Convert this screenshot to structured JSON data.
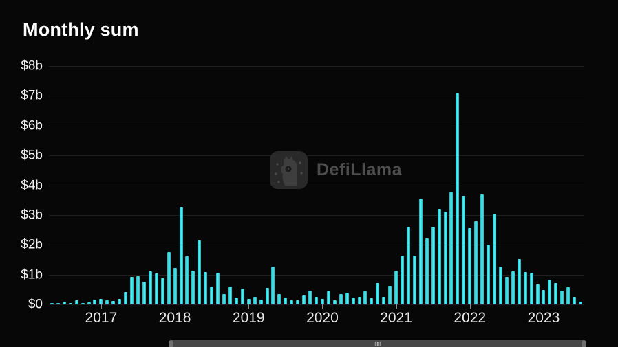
{
  "title": "Monthly sum",
  "watermark": {
    "text": "DefiLlama",
    "logo": "llama-in-rounded-square"
  },
  "colors": {
    "background": "#070707",
    "bar": "#35dbe0",
    "bar_gradient_edge": "#14b2c0",
    "bar_gradient_center": "#55eaee",
    "grid": "#1f1f1f",
    "axis_text": "#f2f2f2",
    "title_text": "#ffffff",
    "watermark_text": "#4d4d4d",
    "slider_track": "#474747",
    "slider_caps": "#6f6f6f",
    "slider_grip": "#a8a8a8"
  },
  "y_axis": {
    "tick_labels": [
      "$8b",
      "$7b",
      "$6b",
      "$5b",
      "$4b",
      "$3b",
      "$2b",
      "$1b",
      "$0"
    ],
    "max_billions": 8
  },
  "x_axis": {
    "tick_labels": [
      "2017",
      "2018",
      "2019",
      "2020",
      "2021",
      "2022",
      "2023"
    ]
  },
  "slider": {
    "grip_icon": "three-vertical-lines"
  },
  "chart_data": {
    "type": "bar",
    "title": "Monthly sum",
    "unit": "USD billions",
    "ylabel": "",
    "xlabel": "",
    "ylim": [
      0,
      8
    ],
    "y_ticks_billions": [
      0,
      1,
      2,
      3,
      4,
      5,
      6,
      7,
      8
    ],
    "x_tick_years": [
      2017,
      2018,
      2019,
      2020,
      2021,
      2022,
      2023
    ],
    "grid": "horizontal-only",
    "legend": "none",
    "x": [
      "2016-05",
      "2016-06",
      "2016-07",
      "2016-08",
      "2016-09",
      "2016-10",
      "2016-11",
      "2016-12",
      "2017-01",
      "2017-02",
      "2017-03",
      "2017-04",
      "2017-05",
      "2017-06",
      "2017-07",
      "2017-08",
      "2017-09",
      "2017-10",
      "2017-11",
      "2017-12",
      "2018-01",
      "2018-02",
      "2018-03",
      "2018-04",
      "2018-05",
      "2018-06",
      "2018-07",
      "2018-08",
      "2018-09",
      "2018-10",
      "2018-11",
      "2018-12",
      "2019-01",
      "2019-02",
      "2019-03",
      "2019-04",
      "2019-05",
      "2019-06",
      "2019-07",
      "2019-08",
      "2019-09",
      "2019-10",
      "2019-11",
      "2019-12",
      "2020-01",
      "2020-02",
      "2020-03",
      "2020-04",
      "2020-05",
      "2020-06",
      "2020-07",
      "2020-08",
      "2020-09",
      "2020-10",
      "2020-11",
      "2020-12",
      "2021-01",
      "2021-02",
      "2021-03",
      "2021-04",
      "2021-05",
      "2021-06",
      "2021-07",
      "2021-08",
      "2021-09",
      "2021-10",
      "2021-11",
      "2021-12",
      "2022-01",
      "2022-02",
      "2022-03",
      "2022-04",
      "2022-05",
      "2022-06",
      "2022-07",
      "2022-08",
      "2022-09",
      "2022-10",
      "2022-11",
      "2022-12",
      "2023-01",
      "2023-02",
      "2023-03",
      "2023-04",
      "2023-05",
      "2023-06",
      "2023-07"
    ],
    "values": [
      0.04,
      0.05,
      0.09,
      0.05,
      0.15,
      0.05,
      0.07,
      0.16,
      0.18,
      0.15,
      0.11,
      0.19,
      0.42,
      0.92,
      0.95,
      0.76,
      1.11,
      1.03,
      0.88,
      1.75,
      1.22,
      3.28,
      1.61,
      1.13,
      2.15,
      1.09,
      0.6,
      1.07,
      0.34,
      0.61,
      0.24,
      0.52,
      0.18,
      0.26,
      0.17,
      0.55,
      1.26,
      0.34,
      0.22,
      0.13,
      0.15,
      0.3,
      0.45,
      0.25,
      0.18,
      0.43,
      0.15,
      0.34,
      0.39,
      0.22,
      0.26,
      0.43,
      0.2,
      0.72,
      0.26,
      0.63,
      1.13,
      1.63,
      2.61,
      1.63,
      3.54,
      2.21,
      2.61,
      3.21,
      3.11,
      3.75,
      7.08,
      3.65,
      2.55,
      2.8,
      3.68,
      2.0,
      3.02,
      1.26,
      0.92,
      1.11,
      1.53,
      1.09,
      1.06,
      0.67,
      0.49,
      0.82,
      0.72,
      0.45,
      0.57,
      0.26,
      0.09
    ]
  }
}
